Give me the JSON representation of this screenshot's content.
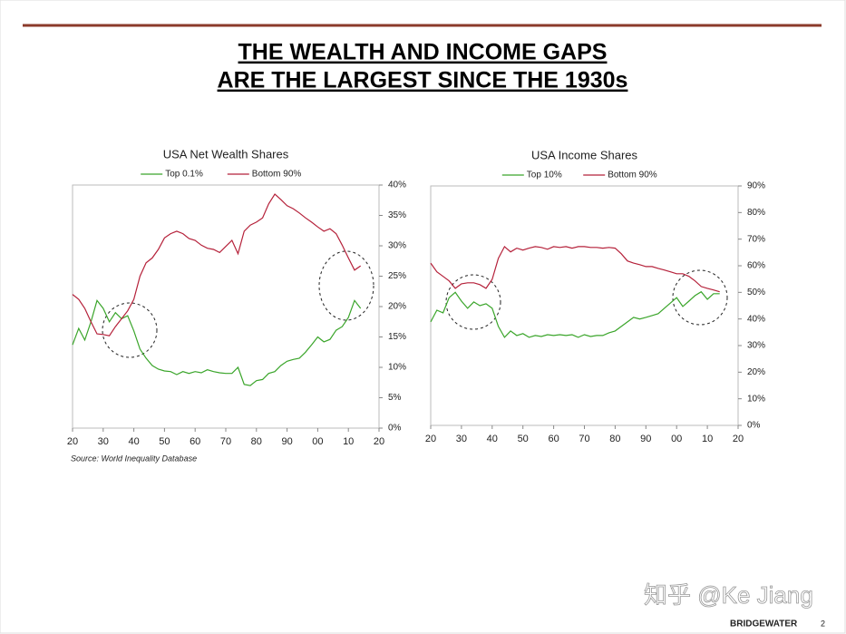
{
  "slide": {
    "title": [
      "THE WEALTH AND INCOME GAPS",
      "ARE THE LARGEST SINCE THE 1930s"
    ],
    "source": "Source: World Inequality Database",
    "brand": "BRIDGEWATER",
    "page_number": "2",
    "watermark": "知乎 @Ke Jiang"
  },
  "chart_data": [
    {
      "type": "line",
      "title": "USA Net Wealth Shares",
      "legend": "top",
      "x": [
        1920,
        1922,
        1924,
        1926,
        1928,
        1930,
        1932,
        1934,
        1936,
        1938,
        1940,
        1942,
        1944,
        1946,
        1948,
        1950,
        1952,
        1954,
        1956,
        1958,
        1960,
        1962,
        1964,
        1966,
        1968,
        1970,
        1972,
        1974,
        1976,
        1978,
        1980,
        1982,
        1984,
        1986,
        1988,
        1990,
        1992,
        1994,
        1996,
        1998,
        2000,
        2002,
        2004,
        2006,
        2008,
        2010,
        2012,
        2014
      ],
      "xlim": [
        1920,
        2020
      ],
      "xticks": [
        {
          "value": 1920,
          "label": "20"
        },
        {
          "value": 1930,
          "label": "30"
        },
        {
          "value": 1940,
          "label": "40"
        },
        {
          "value": 1950,
          "label": "50"
        },
        {
          "value": 1960,
          "label": "60"
        },
        {
          "value": 1970,
          "label": "70"
        },
        {
          "value": 1980,
          "label": "80"
        },
        {
          "value": 1990,
          "label": "90"
        },
        {
          "value": 2000,
          "label": "00"
        },
        {
          "value": 2010,
          "label": "10"
        },
        {
          "value": 2020,
          "label": "20"
        }
      ],
      "ylim": [
        0,
        40
      ],
      "yticks": [
        {
          "value": 0,
          "label": "0%"
        },
        {
          "value": 5,
          "label": "5%"
        },
        {
          "value": 10,
          "label": "10%"
        },
        {
          "value": 15,
          "label": "15%"
        },
        {
          "value": 20,
          "label": "20%"
        },
        {
          "value": 25,
          "label": "25%"
        },
        {
          "value": 30,
          "label": "30%"
        },
        {
          "value": 35,
          "label": "35%"
        },
        {
          "value": 40,
          "label": "40%"
        }
      ],
      "series": [
        {
          "name": "Top 0.1%",
          "color": "#3aa52a",
          "values": [
            13.7,
            16.4,
            14.5,
            17.5,
            21,
            19.7,
            17.5,
            19,
            18,
            18.5,
            16,
            13,
            11.5,
            10.3,
            9.7,
            9.4,
            9.3,
            8.8,
            9.3,
            9,
            9.3,
            9.1,
            9.6,
            9.3,
            9.1,
            9,
            9,
            10,
            7.2,
            7,
            7.8,
            8,
            9,
            9.3,
            10.3,
            11,
            11.3,
            11.5,
            12.5,
            13.7,
            15,
            14.2,
            14.6,
            16.1,
            16.7,
            18.2,
            21,
            19.7
          ]
        },
        {
          "name": "Bottom 90%",
          "color": "#b5213a",
          "values": [
            22,
            21.2,
            19.7,
            17.5,
            15.5,
            15.4,
            15.2,
            16.7,
            18,
            19.3,
            21.2,
            25,
            27.2,
            28,
            29.4,
            31.3,
            32,
            32.4,
            32,
            31.2,
            30.9,
            30.1,
            29.6,
            29.4,
            28.9,
            29.9,
            30.9,
            28.7,
            32.4,
            33.4,
            33.9,
            34.6,
            36.9,
            38.5,
            37.6,
            36.6,
            36.1,
            35.4,
            34.6,
            33.9,
            33.1,
            32.4,
            32.8,
            32,
            30.1,
            28,
            26,
            26.7
          ]
        }
      ]
    },
    {
      "type": "line",
      "title": "USA Income Shares",
      "legend": "top",
      "x": [
        1920,
        1922,
        1924,
        1926,
        1928,
        1930,
        1932,
        1934,
        1936,
        1938,
        1940,
        1942,
        1944,
        1946,
        1948,
        1950,
        1952,
        1954,
        1956,
        1958,
        1960,
        1962,
        1964,
        1966,
        1968,
        1970,
        1972,
        1974,
        1976,
        1978,
        1980,
        1982,
        1984,
        1986,
        1988,
        1990,
        1992,
        1994,
        1996,
        1998,
        2000,
        2002,
        2004,
        2006,
        2008,
        2010,
        2012,
        2014
      ],
      "xlim": [
        1920,
        2020
      ],
      "xticks": [
        {
          "value": 1920,
          "label": "20"
        },
        {
          "value": 1930,
          "label": "30"
        },
        {
          "value": 1940,
          "label": "40"
        },
        {
          "value": 1950,
          "label": "50"
        },
        {
          "value": 1960,
          "label": "60"
        },
        {
          "value": 1970,
          "label": "70"
        },
        {
          "value": 1980,
          "label": "80"
        },
        {
          "value": 1990,
          "label": "90"
        },
        {
          "value": 2000,
          "label": "00"
        },
        {
          "value": 2010,
          "label": "10"
        },
        {
          "value": 2020,
          "label": "20"
        }
      ],
      "ylim": [
        0,
        90
      ],
      "yticks": [
        {
          "value": 0,
          "label": "0%"
        },
        {
          "value": 10,
          "label": "10%"
        },
        {
          "value": 20,
          "label": "20%"
        },
        {
          "value": 30,
          "label": "30%"
        },
        {
          "value": 40,
          "label": "40%"
        },
        {
          "value": 50,
          "label": "50%"
        },
        {
          "value": 60,
          "label": "60%"
        },
        {
          "value": 70,
          "label": "70%"
        },
        {
          "value": 80,
          "label": "80%"
        },
        {
          "value": 90,
          "label": "90%"
        }
      ],
      "series": [
        {
          "name": "Top 10%",
          "color": "#3aa52a",
          "values": [
            38.9,
            43.3,
            42.3,
            48,
            50,
            46.7,
            44,
            46.4,
            45,
            45.7,
            44,
            37.2,
            33.1,
            35.5,
            33.8,
            34.5,
            33.1,
            33.8,
            33.4,
            34.1,
            33.8,
            34.1,
            33.8,
            34.1,
            33.1,
            34.1,
            33.4,
            33.8,
            33.8,
            34.8,
            35.5,
            37.2,
            38.9,
            40.6,
            40,
            40.6,
            41.3,
            42,
            44,
            46,
            48,
            44.7,
            46.7,
            48.8,
            50.2,
            47.4,
            49.5,
            49.5
          ]
        },
        {
          "name": "Bottom 90%",
          "color": "#b5213a",
          "values": [
            61,
            57.7,
            56,
            54.3,
            51.5,
            53.2,
            53.6,
            53.6,
            52.9,
            51.5,
            54.9,
            62.8,
            67.2,
            65.2,
            66.6,
            65.9,
            66.6,
            67.2,
            66.9,
            66.2,
            67.2,
            66.9,
            67.2,
            66.6,
            67.2,
            67.2,
            66.9,
            66.9,
            66.6,
            66.9,
            66.6,
            64.5,
            61.8,
            61,
            60.4,
            59.7,
            59.7,
            59,
            58.4,
            57.7,
            57,
            57,
            56,
            54.3,
            52.2,
            51.5,
            50.9,
            50.2
          ]
        }
      ]
    }
  ]
}
